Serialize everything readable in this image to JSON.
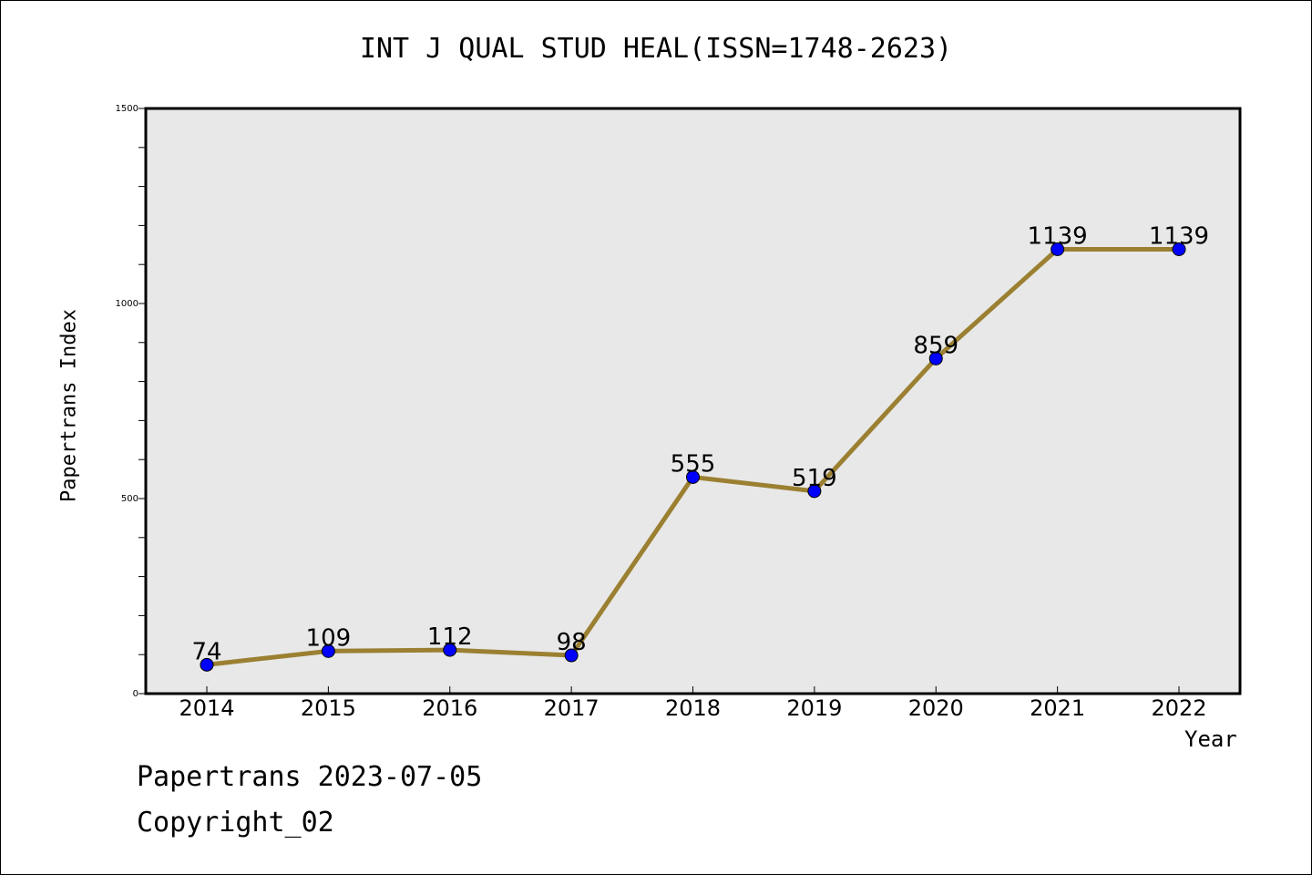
{
  "title": "INT J QUAL STUD HEAL(ISSN=1748-2623)",
  "footer": {
    "line1": "Papertrans 2023-07-05",
    "line2": "Copyright_02"
  },
  "chart_data": {
    "type": "line",
    "title": "INT J QUAL STUD HEAL(ISSN=1748-2623)",
    "xlabel": "Year",
    "ylabel": "Papertrans Index",
    "categories": [
      "2014",
      "2015",
      "2016",
      "2017",
      "2018",
      "2019",
      "2020",
      "2021",
      "2022"
    ],
    "series": [
      {
        "values": [
          74,
          109,
          112,
          98,
          555,
          519,
          859,
          1139,
          1139
        ]
      }
    ],
    "data_labels": [
      "74",
      "109",
      "112",
      "98",
      "555",
      "519",
      "859",
      "1139",
      "1139"
    ],
    "ylim": [
      0,
      1500
    ],
    "yticks": [
      "0",
      "500",
      "1000",
      "1500"
    ],
    "grid": false,
    "line_color": "#9b8032",
    "marker_color": "#0000ff",
    "plot_background": "#e8e8e8"
  }
}
